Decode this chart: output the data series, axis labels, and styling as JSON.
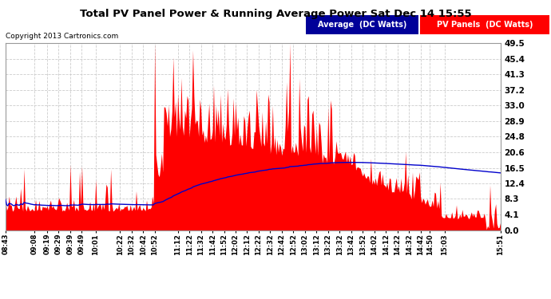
{
  "title": "Total PV Panel Power & Running Average Power Sat Dec 14 15:55",
  "copyright": "Copyright 2013 Cartronics.com",
  "legend_labels": [
    "Average  (DC Watts)",
    "PV Panels  (DC Watts)"
  ],
  "legend_bg_colors": [
    "#000099",
    "#ff0000"
  ],
  "ylabel_right_values": [
    0.0,
    4.1,
    8.3,
    12.4,
    16.5,
    20.6,
    24.8,
    28.9,
    33.0,
    37.2,
    41.3,
    45.4,
    49.5
  ],
  "ymax": 49.5,
  "ymin": 0.0,
  "background_color": "#ffffff",
  "plot_bg_color": "#ffffff",
  "grid_color": "#cccccc",
  "bar_color": "#ff0000",
  "line_color": "#0000cc",
  "x_labels": [
    "08:43",
    "09:08",
    "09:19",
    "09:29",
    "09:39",
    "09:49",
    "10:01",
    "10:22",
    "10:32",
    "10:42",
    "10:52",
    "11:12",
    "11:22",
    "11:32",
    "11:42",
    "11:52",
    "12:02",
    "12:12",
    "12:22",
    "12:32",
    "12:42",
    "12:52",
    "13:02",
    "13:12",
    "13:22",
    "13:32",
    "13:42",
    "13:52",
    "14:02",
    "14:12",
    "14:22",
    "14:32",
    "14:42",
    "14:50",
    "15:03",
    "15:51"
  ]
}
